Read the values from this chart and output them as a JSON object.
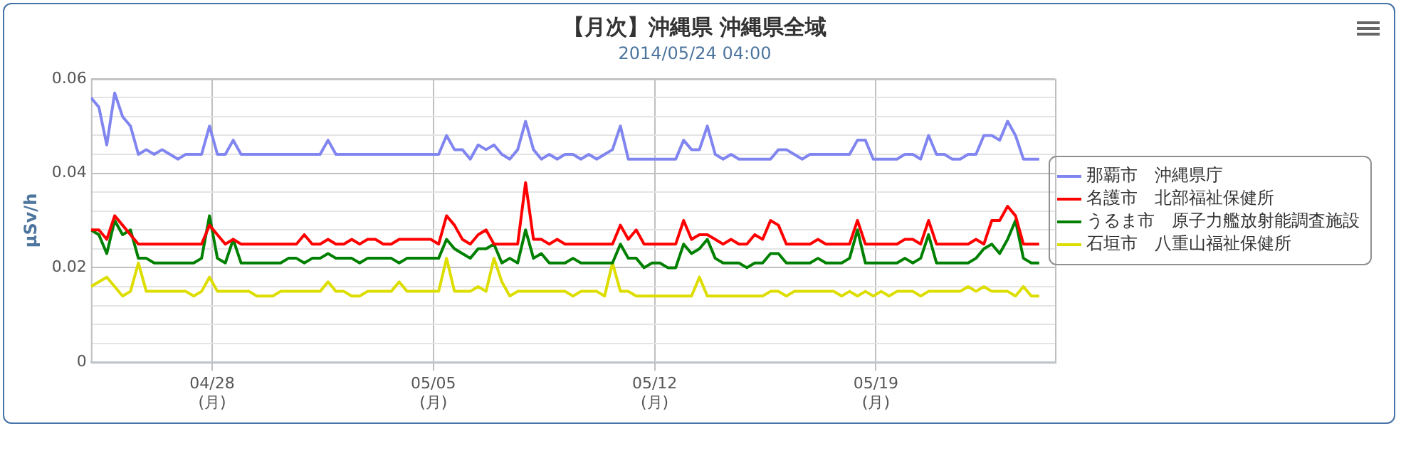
{
  "chart_data": {
    "type": "line",
    "title": "【月次】沖縄県 沖縄県全域",
    "subtitle": "2014/05/24 04:00",
    "ylabel": "μSv/h",
    "x": [
      "2014-04-24T04:00",
      "2014-04-24T10:00",
      "2014-04-24T16:00",
      "2014-04-24T22:00",
      "2014-04-25T04:00",
      "2014-04-25T10:00",
      "2014-04-25T16:00",
      "2014-04-25T22:00",
      "2014-04-26T04:00",
      "2014-04-26T10:00",
      "2014-04-26T16:00",
      "2014-04-26T22:00",
      "2014-04-27T04:00",
      "2014-04-27T10:00",
      "2014-04-27T16:00",
      "2014-04-27T22:00",
      "2014-04-28T04:00",
      "2014-04-28T10:00",
      "2014-04-28T16:00",
      "2014-04-28T22:00",
      "2014-04-29T04:00",
      "2014-04-29T10:00",
      "2014-04-29T16:00",
      "2014-04-29T22:00",
      "2014-04-30T04:00",
      "2014-04-30T10:00",
      "2014-04-30T16:00",
      "2014-04-30T22:00",
      "2014-05-01T04:00",
      "2014-05-01T10:00",
      "2014-05-01T16:00",
      "2014-05-01T22:00",
      "2014-05-02T04:00",
      "2014-05-02T10:00",
      "2014-05-02T16:00",
      "2014-05-02T22:00",
      "2014-05-03T04:00",
      "2014-05-03T10:00",
      "2014-05-03T16:00",
      "2014-05-03T22:00",
      "2014-05-04T04:00",
      "2014-05-04T10:00",
      "2014-05-04T16:00",
      "2014-05-04T22:00",
      "2014-05-05T04:00",
      "2014-05-05T10:00",
      "2014-05-05T16:00",
      "2014-05-05T22:00",
      "2014-05-06T04:00",
      "2014-05-06T10:00",
      "2014-05-06T16:00",
      "2014-05-06T22:00",
      "2014-05-07T04:00",
      "2014-05-07T10:00",
      "2014-05-07T16:00",
      "2014-05-07T22:00",
      "2014-05-08T04:00",
      "2014-05-08T10:00",
      "2014-05-08T16:00",
      "2014-05-08T22:00",
      "2014-05-09T04:00",
      "2014-05-09T10:00",
      "2014-05-09T16:00",
      "2014-05-09T22:00",
      "2014-05-10T04:00",
      "2014-05-10T10:00",
      "2014-05-10T16:00",
      "2014-05-10T22:00",
      "2014-05-11T04:00",
      "2014-05-11T10:00",
      "2014-05-11T16:00",
      "2014-05-11T22:00",
      "2014-05-12T04:00",
      "2014-05-12T10:00",
      "2014-05-12T16:00",
      "2014-05-12T22:00",
      "2014-05-13T04:00",
      "2014-05-13T10:00",
      "2014-05-13T16:00",
      "2014-05-13T22:00",
      "2014-05-14T04:00",
      "2014-05-14T10:00",
      "2014-05-14T16:00",
      "2014-05-14T22:00",
      "2014-05-15T04:00",
      "2014-05-15T10:00",
      "2014-05-15T16:00",
      "2014-05-15T22:00",
      "2014-05-16T04:00",
      "2014-05-16T10:00",
      "2014-05-16T16:00",
      "2014-05-16T22:00",
      "2014-05-17T04:00",
      "2014-05-17T10:00",
      "2014-05-17T16:00",
      "2014-05-17T22:00",
      "2014-05-18T04:00",
      "2014-05-18T10:00",
      "2014-05-18T16:00",
      "2014-05-18T22:00",
      "2014-05-19T04:00",
      "2014-05-19T10:00",
      "2014-05-19T16:00",
      "2014-05-19T22:00",
      "2014-05-20T04:00",
      "2014-05-20T10:00",
      "2014-05-20T16:00",
      "2014-05-20T22:00",
      "2014-05-21T04:00",
      "2014-05-21T10:00",
      "2014-05-21T16:00",
      "2014-05-21T22:00",
      "2014-05-22T04:00",
      "2014-05-22T10:00",
      "2014-05-22T16:00",
      "2014-05-22T22:00",
      "2014-05-23T04:00",
      "2014-05-23T10:00",
      "2014-05-23T16:00",
      "2014-05-23T22:00",
      "2014-05-24T04:00"
    ],
    "series": [
      {
        "name": "那覇市　沖縄県庁",
        "color": "#8085f0",
        "values": [
          0.056,
          0.054,
          0.046,
          0.057,
          0.052,
          0.05,
          0.044,
          0.045,
          0.044,
          0.045,
          0.044,
          0.043,
          0.044,
          0.044,
          0.044,
          0.05,
          0.044,
          0.044,
          0.047,
          0.044,
          0.044,
          0.044,
          0.044,
          0.044,
          0.044,
          0.044,
          0.044,
          0.044,
          0.044,
          0.044,
          0.047,
          0.044,
          0.044,
          0.044,
          0.044,
          0.044,
          0.044,
          0.044,
          0.044,
          0.044,
          0.044,
          0.044,
          0.044,
          0.044,
          0.044,
          0.048,
          0.045,
          0.045,
          0.043,
          0.046,
          0.045,
          0.046,
          0.044,
          0.043,
          0.045,
          0.051,
          0.045,
          0.043,
          0.044,
          0.043,
          0.044,
          0.044,
          0.043,
          0.044,
          0.043,
          0.044,
          0.045,
          0.05,
          0.043,
          0.043,
          0.043,
          0.043,
          0.043,
          0.043,
          0.043,
          0.047,
          0.045,
          0.045,
          0.05,
          0.044,
          0.043,
          0.044,
          0.043,
          0.043,
          0.043,
          0.043,
          0.043,
          0.045,
          0.045,
          0.044,
          0.043,
          0.044,
          0.044,
          0.044,
          0.044,
          0.044,
          0.044,
          0.047,
          0.047,
          0.043,
          0.043,
          0.043,
          0.043,
          0.044,
          0.044,
          0.043,
          0.048,
          0.044,
          0.044,
          0.043,
          0.043,
          0.044,
          0.044,
          0.048,
          0.048,
          0.047,
          0.051,
          0.048,
          0.043,
          0.043,
          0.043
        ]
      },
      {
        "name": "名護市　北部福祉保健所",
        "color": "#ff0000",
        "values": [
          0.028,
          0.028,
          0.026,
          0.031,
          0.029,
          0.027,
          0.025,
          0.025,
          0.025,
          0.025,
          0.025,
          0.025,
          0.025,
          0.025,
          0.025,
          0.029,
          0.027,
          0.025,
          0.026,
          0.025,
          0.025,
          0.025,
          0.025,
          0.025,
          0.025,
          0.025,
          0.025,
          0.027,
          0.025,
          0.025,
          0.026,
          0.025,
          0.025,
          0.026,
          0.025,
          0.026,
          0.026,
          0.025,
          0.025,
          0.026,
          0.026,
          0.026,
          0.026,
          0.026,
          0.025,
          0.031,
          0.029,
          0.026,
          0.025,
          0.027,
          0.028,
          0.025,
          0.025,
          0.025,
          0.025,
          0.038,
          0.026,
          0.026,
          0.025,
          0.026,
          0.025,
          0.025,
          0.025,
          0.025,
          0.025,
          0.025,
          0.025,
          0.029,
          0.026,
          0.028,
          0.025,
          0.025,
          0.025,
          0.025,
          0.025,
          0.03,
          0.026,
          0.027,
          0.027,
          0.026,
          0.025,
          0.026,
          0.025,
          0.025,
          0.027,
          0.026,
          0.03,
          0.029,
          0.025,
          0.025,
          0.025,
          0.025,
          0.026,
          0.025,
          0.025,
          0.025,
          0.025,
          0.03,
          0.025,
          0.025,
          0.025,
          0.025,
          0.025,
          0.026,
          0.026,
          0.025,
          0.03,
          0.025,
          0.025,
          0.025,
          0.025,
          0.025,
          0.026,
          0.025,
          0.03,
          0.03,
          0.033,
          0.031,
          0.025,
          0.025,
          0.025
        ]
      },
      {
        "name": "うるま市　原子力艦放射能調査施設",
        "color": "#008000",
        "values": [
          0.028,
          0.027,
          0.023,
          0.03,
          0.027,
          0.028,
          0.022,
          0.022,
          0.021,
          0.021,
          0.021,
          0.021,
          0.021,
          0.021,
          0.022,
          0.031,
          0.022,
          0.021,
          0.026,
          0.021,
          0.021,
          0.021,
          0.021,
          0.021,
          0.021,
          0.022,
          0.022,
          0.021,
          0.022,
          0.022,
          0.023,
          0.022,
          0.022,
          0.022,
          0.021,
          0.022,
          0.022,
          0.022,
          0.022,
          0.021,
          0.022,
          0.022,
          0.022,
          0.022,
          0.022,
          0.026,
          0.024,
          0.023,
          0.022,
          0.024,
          0.024,
          0.025,
          0.021,
          0.022,
          0.021,
          0.028,
          0.022,
          0.023,
          0.021,
          0.021,
          0.021,
          0.022,
          0.021,
          0.021,
          0.021,
          0.021,
          0.021,
          0.025,
          0.022,
          0.022,
          0.02,
          0.021,
          0.021,
          0.02,
          0.02,
          0.025,
          0.023,
          0.024,
          0.026,
          0.022,
          0.021,
          0.021,
          0.021,
          0.02,
          0.021,
          0.021,
          0.023,
          0.023,
          0.021,
          0.021,
          0.021,
          0.021,
          0.022,
          0.021,
          0.021,
          0.021,
          0.022,
          0.028,
          0.021,
          0.021,
          0.021,
          0.021,
          0.021,
          0.022,
          0.021,
          0.022,
          0.027,
          0.021,
          0.021,
          0.021,
          0.021,
          0.021,
          0.022,
          0.024,
          0.025,
          0.023,
          0.026,
          0.03,
          0.022,
          0.021,
          0.021
        ]
      },
      {
        "name": "石垣市　八重山福祉保健所",
        "color": "#dddd00",
        "values": [
          0.016,
          0.017,
          0.018,
          0.016,
          0.014,
          0.015,
          0.021,
          0.015,
          0.015,
          0.015,
          0.015,
          0.015,
          0.015,
          0.014,
          0.015,
          0.018,
          0.015,
          0.015,
          0.015,
          0.015,
          0.015,
          0.014,
          0.014,
          0.014,
          0.015,
          0.015,
          0.015,
          0.015,
          0.015,
          0.015,
          0.017,
          0.015,
          0.015,
          0.014,
          0.014,
          0.015,
          0.015,
          0.015,
          0.015,
          0.017,
          0.015,
          0.015,
          0.015,
          0.015,
          0.015,
          0.022,
          0.015,
          0.015,
          0.015,
          0.016,
          0.015,
          0.022,
          0.017,
          0.014,
          0.015,
          0.015,
          0.015,
          0.015,
          0.015,
          0.015,
          0.015,
          0.014,
          0.015,
          0.015,
          0.015,
          0.014,
          0.021,
          0.015,
          0.015,
          0.014,
          0.014,
          0.014,
          0.014,
          0.014,
          0.014,
          0.014,
          0.014,
          0.018,
          0.014,
          0.014,
          0.014,
          0.014,
          0.014,
          0.014,
          0.014,
          0.014,
          0.015,
          0.015,
          0.014,
          0.015,
          0.015,
          0.015,
          0.015,
          0.015,
          0.015,
          0.014,
          0.015,
          0.014,
          0.015,
          0.014,
          0.015,
          0.014,
          0.015,
          0.015,
          0.015,
          0.014,
          0.015,
          0.015,
          0.015,
          0.015,
          0.015,
          0.016,
          0.015,
          0.016,
          0.015,
          0.015,
          0.015,
          0.014,
          0.016,
          0.014,
          0.014
        ]
      }
    ],
    "xlim": [
      "2014-04-24T04:00",
      "2014-05-24T16:00"
    ],
    "xticks": [
      {
        "value": "2014-04-28",
        "label": "04/28\n(月)"
      },
      {
        "value": "2014-05-05",
        "label": "05/05\n(月)"
      },
      {
        "value": "2014-05-12",
        "label": "05/12\n(月)"
      },
      {
        "value": "2014-05-19",
        "label": "05/19\n(月)"
      }
    ],
    "ylim": [
      0,
      0.06
    ],
    "yticks": [
      0,
      {
        "value": 0.004,
        "label": null
      },
      {
        "value": 0.008,
        "label": null
      },
      {
        "value": 0.012,
        "label": null
      },
      {
        "value": 0.016,
        "label": null
      },
      0.02,
      {
        "value": 0.024,
        "label": null
      },
      {
        "value": 0.028,
        "label": null
      },
      {
        "value": 0.032,
        "label": null
      },
      {
        "value": 0.036,
        "label": null
      },
      0.04,
      {
        "value": 0.044,
        "label": null
      },
      {
        "value": 0.048,
        "label": null
      },
      {
        "value": 0.052,
        "label": null
      },
      {
        "value": 0.056,
        "label": null
      },
      0.06
    ],
    "grid": true,
    "legend": "right",
    "marker": "none",
    "line_style": "solid"
  }
}
